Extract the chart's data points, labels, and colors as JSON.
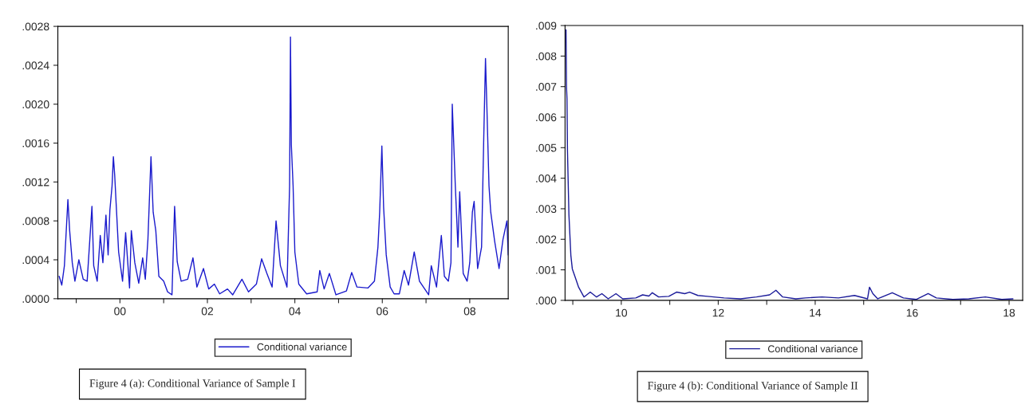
{
  "chart_data": [
    {
      "type": "line",
      "xlim": [
        1998.58,
        2008.88
      ],
      "ylim": [
        0,
        0.0028
      ],
      "xticks": [
        {
          "value": 1999,
          "label": null
        },
        {
          "value": 2000,
          "label": "00"
        },
        {
          "value": 2001,
          "label": null
        },
        {
          "value": 2002,
          "label": "02"
        },
        {
          "value": 2003,
          "label": null
        },
        {
          "value": 2004,
          "label": "04"
        },
        {
          "value": 2005,
          "label": null
        },
        {
          "value": 2006,
          "label": "06"
        },
        {
          "value": 2007,
          "label": null
        },
        {
          "value": 2008,
          "label": "08"
        }
      ],
      "yticks": [
        {
          "value": 0,
          "label": ".0000"
        },
        {
          "value": 0.0004,
          "label": ".0004"
        },
        {
          "value": 0.0008,
          "label": ".0008"
        },
        {
          "value": 0.0012,
          "label": ".0012"
        },
        {
          "value": 0.0016,
          "label": ".0016"
        },
        {
          "value": 0.002,
          "label": ".0020"
        },
        {
          "value": 0.0024,
          "label": ".0024"
        },
        {
          "value": 0.0028,
          "label": ".0028"
        }
      ],
      "grid": false,
      "legend": "bottom",
      "marker": "none",
      "line_style": "solid",
      "annotations": [
        "Figure 4 (a): Conditional Variance of Sample I"
      ],
      "series": [
        {
          "name": "Conditional variance",
          "color": "#1a1acc",
          "x": [
            1998.61,
            1998.67,
            1998.73,
            1998.81,
            1998.85,
            1998.91,
            1998.97,
            1999.06,
            1999.16,
            1999.25,
            1999.36,
            1999.4,
            1999.48,
            1999.55,
            1999.61,
            1999.68,
            1999.73,
            1999.77,
            1999.82,
            1999.85,
            1999.88,
            1999.97,
            2000.06,
            2000.13,
            2000.22,
            2000.26,
            2000.34,
            2000.43,
            2000.52,
            2000.58,
            2000.64,
            2000.71,
            2000.76,
            2000.82,
            2000.89,
            2001.0,
            2001.09,
            2001.19,
            2001.25,
            2001.31,
            2001.4,
            2001.55,
            2001.67,
            2001.76,
            2001.91,
            2002.03,
            2002.16,
            2002.28,
            2002.46,
            2002.58,
            2002.79,
            2002.94,
            2003.12,
            2003.24,
            2003.36,
            2003.48,
            2003.57,
            2003.67,
            2003.82,
            2003.88,
            2003.9,
            2003.92,
            2003.96,
            2004.0,
            2004.09,
            2004.27,
            2004.51,
            2004.57,
            2004.67,
            2004.79,
            2004.94,
            2005.18,
            2005.3,
            2005.42,
            2005.67,
            2005.82,
            2005.9,
            2005.94,
            2005.99,
            2006.03,
            2006.09,
            2006.18,
            2006.27,
            2006.39,
            2006.5,
            2006.6,
            2006.73,
            2006.85,
            2007.06,
            2007.12,
            2007.24,
            2007.35,
            2007.42,
            2007.51,
            2007.57,
            2007.6,
            2007.67,
            2007.73,
            2007.77,
            2007.85,
            2007.94,
            2008.0,
            2008.06,
            2008.1,
            2008.18,
            2008.27,
            2008.32,
            2008.36,
            2008.39,
            2008.44,
            2008.48,
            2008.57,
            2008.67,
            2008.76,
            2008.85,
            2008.88
          ],
          "values": [
            0.00023,
            0.00014,
            0.00034,
            0.00102,
            0.0007,
            0.00037,
            0.00018,
            0.0004,
            0.0002,
            0.00018,
            0.00095,
            0.00034,
            0.00018,
            0.00065,
            0.00037,
            0.00086,
            0.00045,
            0.00091,
            0.00116,
            0.00146,
            0.00127,
            0.00048,
            0.00018,
            0.00068,
            0.00011,
            0.0007,
            0.00037,
            0.00016,
            0.00042,
            0.0002,
            0.00061,
            0.00146,
            0.00089,
            0.0007,
            0.00023,
            0.00018,
            7e-05,
            4e-05,
            0.00095,
            0.00038,
            0.00018,
            0.0002,
            0.00042,
            0.00012,
            0.00031,
            0.0001,
            0.00015,
            5e-05,
            0.0001,
            4e-05,
            0.0002,
            7e-05,
            0.00015,
            0.00041,
            0.00026,
            0.00012,
            0.0008,
            0.00034,
            0.00012,
            0.00116,
            0.00269,
            0.00158,
            0.00116,
            0.00048,
            0.00015,
            5e-05,
            7e-05,
            0.00029,
            0.0001,
            0.00026,
            4e-05,
            8e-05,
            0.00027,
            0.00012,
            0.00011,
            0.00018,
            0.00053,
            0.00089,
            0.00157,
            0.00094,
            0.00045,
            0.00012,
            5e-05,
            5e-05,
            0.00029,
            0.00014,
            0.00048,
            0.00018,
            4e-05,
            0.00034,
            0.00012,
            0.00065,
            0.00023,
            0.00018,
            0.00037,
            0.002,
            0.00116,
            0.00053,
            0.0011,
            0.00026,
            0.00018,
            0.00037,
            0.00089,
            0.001,
            0.00031,
            0.00053,
            0.00165,
            0.00247,
            0.002,
            0.00116,
            0.00089,
            0.00059,
            0.00031,
            0.00061,
            0.0008,
            0.00045
          ]
        }
      ]
    },
    {
      "type": "line",
      "xlim": [
        2008.84,
        2018.28
      ],
      "ylim": [
        0,
        0.009
      ],
      "xticks": [
        {
          "value": 2009,
          "label": null
        },
        {
          "value": 2010,
          "label": "10"
        },
        {
          "value": 2011,
          "label": null
        },
        {
          "value": 2012,
          "label": "12"
        },
        {
          "value": 2013,
          "label": null
        },
        {
          "value": 2014,
          "label": "14"
        },
        {
          "value": 2015,
          "label": null
        },
        {
          "value": 2016,
          "label": "16"
        },
        {
          "value": 2017,
          "label": null
        },
        {
          "value": 2018,
          "label": "18"
        }
      ],
      "yticks": [
        {
          "value": 0,
          "label": ".000"
        },
        {
          "value": 0.001,
          "label": ".001"
        },
        {
          "value": 0.002,
          "label": ".002"
        },
        {
          "value": 0.003,
          "label": ".003"
        },
        {
          "value": 0.004,
          "label": ".004"
        },
        {
          "value": 0.005,
          "label": ".005"
        },
        {
          "value": 0.006,
          "label": ".006"
        },
        {
          "value": 0.007,
          "label": ".007"
        },
        {
          "value": 0.008,
          "label": ".008"
        },
        {
          "value": 0.009,
          "label": ".009"
        }
      ],
      "grid": false,
      "legend": "bottom",
      "marker": "none",
      "line_style": "solid",
      "annotations": [
        "Figure 4 (b): Conditional Variance of Sample II"
      ],
      "series": [
        {
          "name": "Conditional variance",
          "color": "#1a1a99",
          "x": [
            2008.86,
            2008.87,
            2008.88,
            2008.89,
            2008.92,
            2008.96,
            2008.99,
            2009.06,
            2009.12,
            2009.23,
            2009.36,
            2009.49,
            2009.6,
            2009.73,
            2009.89,
            2010.03,
            2010.3,
            2010.44,
            2010.57,
            2010.64,
            2010.77,
            2010.98,
            2011.14,
            2011.31,
            2011.41,
            2011.58,
            2011.78,
            2012.12,
            2012.46,
            2012.79,
            2013.06,
            2013.19,
            2013.33,
            2013.6,
            2013.8,
            2014.14,
            2014.48,
            2014.81,
            2015.08,
            2015.12,
            2015.19,
            2015.29,
            2015.59,
            2015.82,
            2016.09,
            2016.33,
            2016.5,
            2016.84,
            2017.17,
            2017.51,
            2017.85,
            2018.08
          ],
          "values": [
            0.00886,
            0.007,
            0.0066,
            0.0049,
            0.0028,
            0.00147,
            0.00103,
            0.00071,
            0.00043,
            0.00011,
            0.00027,
            0.00011,
            0.00022,
            5e-05,
            0.00022,
            5e-05,
            8e-05,
            0.00018,
            0.00014,
            0.00025,
            0.00011,
            0.00013,
            0.00027,
            0.00022,
            0.00027,
            0.00016,
            0.00013,
            8e-05,
            5e-05,
            0.00011,
            0.00018,
            0.00033,
            0.00011,
            5e-05,
            8e-05,
            0.00011,
            8e-05,
            0.00016,
            5e-05,
            0.00043,
            0.00022,
            5e-05,
            0.00025,
            8e-05,
            3e-05,
            0.00022,
            8e-05,
            3e-05,
            5e-05,
            0.00011,
            3e-05,
            5e-05
          ]
        }
      ]
    }
  ]
}
